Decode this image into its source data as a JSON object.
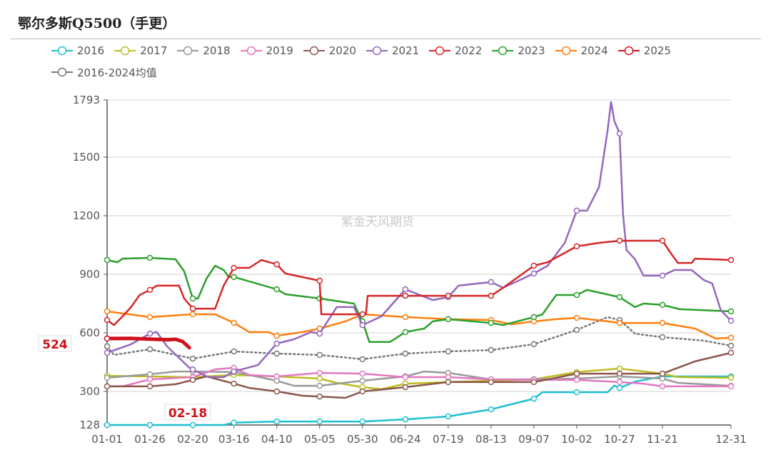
{
  "chart_data": {
    "type": "line",
    "title": "鄂尔多斯Q5500（手更）",
    "watermark": "紫金天风期货",
    "xlabel": "",
    "ylabel": "",
    "x_ticks": [
      "01-01",
      "01-26",
      "02-20",
      "03-16",
      "04-10",
      "05-05",
      "05-30",
      "06-24",
      "07-19",
      "08-13",
      "09-07",
      "10-02",
      "10-27",
      "11-21",
      "12-31"
    ],
    "y_ticks": [
      128,
      300,
      600,
      900,
      1200,
      1500,
      1793
    ],
    "ylim": [
      128,
      1793
    ],
    "grid": true,
    "legend_position": "top",
    "highlight": {
      "x_label": "02-18",
      "y_label": "524",
      "color": "#d0111a"
    },
    "series": [
      {
        "name": "2016",
        "color": "#1fbfd1",
        "points": [
          [
            "01-01",
            128
          ],
          [
            "03-10",
            128
          ],
          [
            "03-16",
            140
          ],
          [
            "04-10",
            146
          ],
          [
            "05-30",
            146
          ],
          [
            "06-24",
            157
          ],
          [
            "07-19",
            172
          ],
          [
            "08-13",
            208
          ],
          [
            "09-07",
            263
          ],
          [
            "09-12",
            296
          ],
          [
            "10-20",
            296
          ],
          [
            "10-24",
            330
          ],
          [
            "10-27",
            318
          ],
          [
            "11-05",
            350
          ],
          [
            "11-21",
            377
          ],
          [
            "12-31",
            377
          ]
        ]
      },
      {
        "name": "2017",
        "color": "#bcbd22",
        "points": [
          [
            "01-01",
            380
          ],
          [
            "01-26",
            377
          ],
          [
            "02-20",
            373
          ],
          [
            "03-16",
            384
          ],
          [
            "04-10",
            377
          ],
          [
            "05-05",
            366
          ],
          [
            "05-15",
            344
          ],
          [
            "05-30",
            322
          ],
          [
            "06-10",
            311
          ],
          [
            "06-24",
            340
          ],
          [
            "07-19",
            348
          ],
          [
            "08-13",
            355
          ],
          [
            "09-07",
            362
          ],
          [
            "10-02",
            399
          ],
          [
            "10-27",
            417
          ],
          [
            "11-21",
            391
          ],
          [
            "11-30",
            373
          ],
          [
            "12-31",
            370
          ]
        ]
      },
      {
        "name": "2018",
        "color": "#999999",
        "points": [
          [
            "01-01",
            370
          ],
          [
            "01-26",
            388
          ],
          [
            "02-10",
            402
          ],
          [
            "02-20",
            402
          ],
          [
            "03-16",
            399
          ],
          [
            "03-25",
            384
          ],
          [
            "04-10",
            355
          ],
          [
            "04-20",
            329
          ],
          [
            "05-05",
            329
          ],
          [
            "05-30",
            355
          ],
          [
            "06-24",
            377
          ],
          [
            "07-05",
            402
          ],
          [
            "07-19",
            395
          ],
          [
            "08-13",
            362
          ],
          [
            "09-07",
            362
          ],
          [
            "10-02",
            366
          ],
          [
            "10-27",
            377
          ],
          [
            "11-21",
            366
          ],
          [
            "11-30",
            344
          ],
          [
            "12-31",
            329
          ]
        ]
      },
      {
        "name": "2019",
        "color": "#e377c2",
        "points": [
          [
            "01-01",
            326
          ],
          [
            "01-10",
            326
          ],
          [
            "01-26",
            362
          ],
          [
            "02-20",
            373
          ],
          [
            "03-05",
            413
          ],
          [
            "03-16",
            421
          ],
          [
            "03-25",
            384
          ],
          [
            "04-10",
            377
          ],
          [
            "05-05",
            395
          ],
          [
            "05-30",
            391
          ],
          [
            "06-24",
            373
          ],
          [
            "07-19",
            373
          ],
          [
            "08-13",
            362
          ],
          [
            "09-07",
            359
          ],
          [
            "10-02",
            359
          ],
          [
            "10-27",
            348
          ],
          [
            "11-10",
            340
          ],
          [
            "11-21",
            326
          ],
          [
            "12-31",
            326
          ]
        ]
      },
      {
        "name": "2020",
        "color": "#8c564b",
        "points": [
          [
            "01-01",
            326
          ],
          [
            "01-26",
            326
          ],
          [
            "02-10",
            337
          ],
          [
            "02-20",
            359
          ],
          [
            "02-28",
            377
          ],
          [
            "03-16",
            340
          ],
          [
            "03-25",
            318
          ],
          [
            "04-10",
            300
          ],
          [
            "04-25",
            278
          ],
          [
            "05-05",
            274
          ],
          [
            "05-20",
            267
          ],
          [
            "05-30",
            300
          ],
          [
            "06-24",
            322
          ],
          [
            "07-19",
            348
          ],
          [
            "09-07",
            348
          ],
          [
            "10-02",
            391
          ],
          [
            "11-21",
            391
          ],
          [
            "12-10",
            454
          ],
          [
            "12-31",
            498
          ]
        ]
      },
      {
        "name": "2021",
        "color": "#9467bd",
        "points": [
          [
            "01-01",
            498
          ],
          [
            "01-15",
            542
          ],
          [
            "01-26",
            596
          ],
          [
            "01-30",
            604
          ],
          [
            "02-05",
            531
          ],
          [
            "02-18",
            421
          ],
          [
            "03-01",
            373
          ],
          [
            "03-10",
            373
          ],
          [
            "03-16",
            402
          ],
          [
            "03-30",
            435
          ],
          [
            "04-10",
            545
          ],
          [
            "04-20",
            567
          ],
          [
            "04-30",
            604
          ],
          [
            "05-05",
            596
          ],
          [
            "05-15",
            732
          ],
          [
            "05-25",
            732
          ],
          [
            "05-30",
            640
          ],
          [
            "06-10",
            684
          ],
          [
            "06-24",
            823
          ],
          [
            "07-10",
            768
          ],
          [
            "07-19",
            783
          ],
          [
            "07-25",
            842
          ],
          [
            "08-13",
            860
          ],
          [
            "08-20",
            831
          ],
          [
            "09-07",
            904
          ],
          [
            "09-15",
            944
          ],
          [
            "09-25",
            1061
          ],
          [
            "10-02",
            1226
          ],
          [
            "10-08",
            1226
          ],
          [
            "10-15",
            1347
          ],
          [
            "10-20",
            1636
          ],
          [
            "10-22",
            1782
          ],
          [
            "10-24",
            1684
          ],
          [
            "10-27",
            1621
          ],
          [
            "10-29",
            1208
          ],
          [
            "10-31",
            1025
          ],
          [
            "11-05",
            977
          ],
          [
            "11-10",
            893
          ],
          [
            "11-21",
            893
          ],
          [
            "11-28",
            922
          ],
          [
            "12-08",
            922
          ],
          [
            "12-15",
            871
          ],
          [
            "12-20",
            853
          ],
          [
            "12-25",
            717
          ],
          [
            "12-31",
            662
          ]
        ]
      },
      {
        "name": "2022",
        "color": "#d62728",
        "points": [
          [
            "01-01",
            666
          ],
          [
            "01-05",
            640
          ],
          [
            "01-10",
            684
          ],
          [
            "01-15",
            732
          ],
          [
            "01-20",
            794
          ],
          [
            "01-26",
            820
          ],
          [
            "01-30",
            842
          ],
          [
            "02-12",
            842
          ],
          [
            "02-15",
            776
          ],
          [
            "02-20",
            724
          ],
          [
            "03-05",
            724
          ],
          [
            "03-10",
            842
          ],
          [
            "03-16",
            933
          ],
          [
            "03-25",
            933
          ],
          [
            "04-01",
            973
          ],
          [
            "04-10",
            951
          ],
          [
            "04-15",
            904
          ],
          [
            "05-05",
            867
          ],
          [
            "05-06",
            695
          ],
          [
            "06-01",
            695
          ],
          [
            "06-02",
            790
          ],
          [
            "08-13",
            790
          ],
          [
            "08-20",
            831
          ],
          [
            "09-07",
            944
          ],
          [
            "09-15",
            962
          ],
          [
            "10-02",
            1043
          ],
          [
            "10-15",
            1061
          ],
          [
            "10-27",
            1072
          ],
          [
            "11-21",
            1072
          ],
          [
            "11-26",
            1006
          ],
          [
            "11-30",
            958
          ],
          [
            "12-08",
            958
          ],
          [
            "12-10",
            980
          ],
          [
            "12-31",
            973
          ]
        ]
      },
      {
        "name": "2023",
        "color": "#2ca02c",
        "points": [
          [
            "01-01",
            973
          ],
          [
            "01-07",
            962
          ],
          [
            "01-10",
            980
          ],
          [
            "01-26",
            984
          ],
          [
            "02-10",
            977
          ],
          [
            "02-15",
            915
          ],
          [
            "02-20",
            776
          ],
          [
            "02-23",
            776
          ],
          [
            "02-28",
            878
          ],
          [
            "03-05",
            944
          ],
          [
            "03-10",
            922
          ],
          [
            "03-13",
            886
          ],
          [
            "03-16",
            886
          ],
          [
            "04-10",
            823
          ],
          [
            "04-15",
            798
          ],
          [
            "05-05",
            776
          ],
          [
            "05-25",
            750
          ],
          [
            "05-30",
            659
          ],
          [
            "06-03",
            553
          ],
          [
            "06-15",
            553
          ],
          [
            "06-24",
            604
          ],
          [
            "07-05",
            622
          ],
          [
            "07-10",
            659
          ],
          [
            "07-19",
            670
          ],
          [
            "08-13",
            651
          ],
          [
            "08-20",
            640
          ],
          [
            "09-07",
            681
          ],
          [
            "09-12",
            695
          ],
          [
            "09-20",
            794
          ],
          [
            "10-02",
            794
          ],
          [
            "10-08",
            820
          ],
          [
            "10-27",
            783
          ],
          [
            "11-05",
            732
          ],
          [
            "11-10",
            750
          ],
          [
            "11-21",
            743
          ],
          [
            "12-01",
            721
          ],
          [
            "12-31",
            710
          ]
        ]
      },
      {
        "name": "2024",
        "color": "#ff7f0e",
        "points": [
          [
            "01-01",
            710
          ],
          [
            "01-26",
            681
          ],
          [
            "02-20",
            695
          ],
          [
            "03-05",
            695
          ],
          [
            "03-16",
            651
          ],
          [
            "03-25",
            604
          ],
          [
            "04-05",
            604
          ],
          [
            "04-10",
            585
          ],
          [
            "04-25",
            604
          ],
          [
            "05-05",
            622
          ],
          [
            "05-20",
            659
          ],
          [
            "05-30",
            695
          ],
          [
            "06-24",
            681
          ],
          [
            "07-19",
            670
          ],
          [
            "08-13",
            666
          ],
          [
            "08-25",
            644
          ],
          [
            "09-07",
            659
          ],
          [
            "09-20",
            670
          ],
          [
            "10-02",
            677
          ],
          [
            "10-20",
            659
          ],
          [
            "10-27",
            651
          ],
          [
            "11-21",
            651
          ],
          [
            "12-10",
            622
          ],
          [
            "12-22",
            571
          ],
          [
            "12-31",
            575
          ]
        ]
      },
      {
        "name": "2025",
        "color": "#d0111a",
        "points": [
          [
            "01-01",
            571
          ],
          [
            "01-15",
            572
          ],
          [
            "01-26",
            568
          ],
          [
            "02-05",
            565
          ],
          [
            "02-10",
            567
          ],
          [
            "02-14",
            556
          ],
          [
            "02-18",
            524
          ]
        ]
      },
      {
        "name": "2016-2024均值",
        "color": "#777777",
        "dashed": true,
        "points": [
          [
            "01-01",
            531
          ],
          [
            "01-05",
            487
          ],
          [
            "01-26",
            516
          ],
          [
            "02-20",
            468
          ],
          [
            "03-16",
            505
          ],
          [
            "04-10",
            494
          ],
          [
            "05-05",
            487
          ],
          [
            "05-30",
            465
          ],
          [
            "06-24",
            494
          ],
          [
            "07-19",
            505
          ],
          [
            "08-13",
            512
          ],
          [
            "09-07",
            542
          ],
          [
            "10-02",
            615
          ],
          [
            "10-20",
            681
          ],
          [
            "10-27",
            666
          ],
          [
            "11-05",
            596
          ],
          [
            "11-21",
            578
          ],
          [
            "12-15",
            560
          ],
          [
            "12-31",
            534
          ]
        ]
      }
    ]
  }
}
